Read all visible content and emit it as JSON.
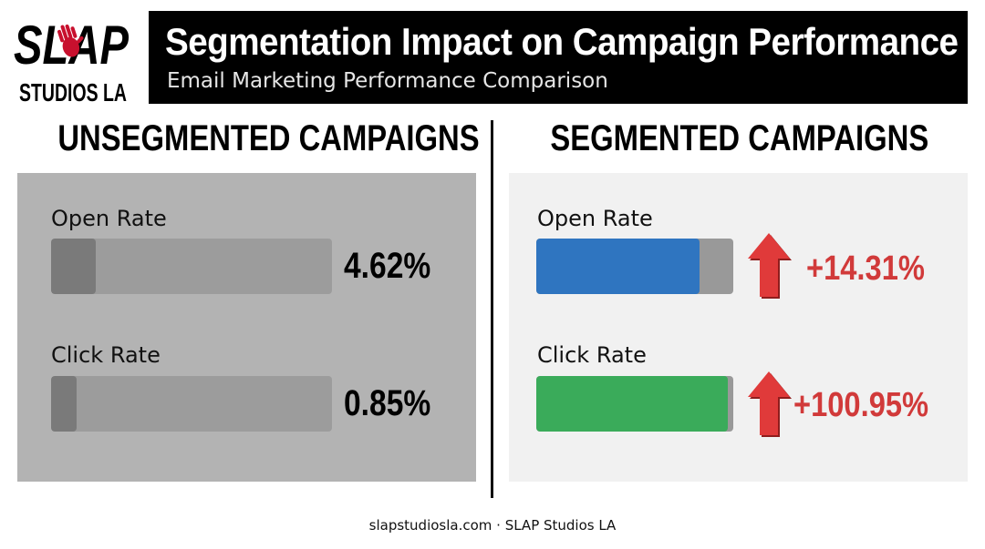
{
  "logo": {
    "line1": "SLAP",
    "line2": "STUDIOS LA",
    "accent_color": "#c8102e"
  },
  "header": {
    "title": "Segmentation Impact on Campaign Performance",
    "subtitle": "Email Marketing Performance Comparison"
  },
  "chart_data": {
    "type": "bar",
    "categories": [
      "Open Rate",
      "Click Rate"
    ],
    "panels": [
      {
        "title": "UNSEGMENTED CAMPAIGNS",
        "metrics": [
          {
            "label": "Open Rate",
            "value_text": "4.62%",
            "fill_fraction": 0.16,
            "bar_color": "#7a7a7a"
          },
          {
            "label": "Click Rate",
            "value_text": "0.85%",
            "fill_fraction": 0.09,
            "bar_color": "#7a7a7a"
          }
        ]
      },
      {
        "title": "SEGMENTED CAMPAIGNS",
        "metrics": [
          {
            "label": "Open Rate",
            "change_text": "+14.31%",
            "fill_fraction": 0.83,
            "bar_color": "#2f75c0",
            "arrow_icon": "arrow-up-icon"
          },
          {
            "label": "Click Rate",
            "change_text": "+100.95%",
            "fill_fraction": 0.97,
            "bar_color": "#3aab5a",
            "arrow_icon": "arrow-up-icon"
          }
        ]
      }
    ],
    "change_color": "#d13a3a"
  },
  "footer": {
    "text": "slapstudiosla.com · SLAP Studios LA"
  }
}
